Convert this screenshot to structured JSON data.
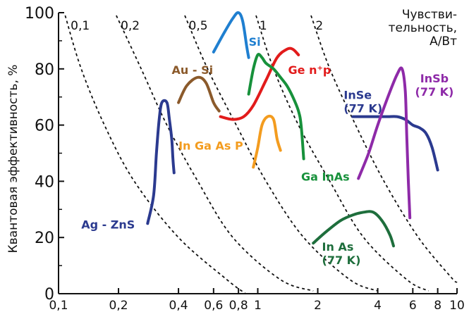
{
  "chart_data": {
    "type": "line",
    "xlabel": "",
    "ylabel": "Квантовая эффективность, %",
    "xscale": "log",
    "xlim": [
      0.1,
      10
    ],
    "ylim": [
      0,
      100
    ],
    "xticks": [
      {
        "v": 0.1,
        "label": "0,1"
      },
      {
        "v": 0.2,
        "label": "0,2"
      },
      {
        "v": 0.4,
        "label": "0,4"
      },
      {
        "v": 0.6,
        "label": "0,6"
      },
      {
        "v": 0.8,
        "label": "0,8"
      },
      {
        "v": 1,
        "label": "1"
      },
      {
        "v": 2,
        "label": "2"
      },
      {
        "v": 4,
        "label": "4"
      },
      {
        "v": 6,
        "label": "6"
      },
      {
        "v": 8,
        "label": "8"
      },
      {
        "v": 10,
        "label": "10"
      }
    ],
    "yticks": [
      {
        "v": 0,
        "label": "0"
      },
      {
        "v": 20,
        "label": "20"
      },
      {
        "v": 40,
        "label": "40"
      },
      {
        "v": 60,
        "label": "60"
      },
      {
        "v": 80,
        "label": "80"
      },
      {
        "v": 100,
        "label": "100"
      }
    ],
    "responsivity_title": [
      "Чувстви-",
      "тельность,",
      "А/Вт"
    ],
    "responsivity_lines": [
      {
        "label": "0,1",
        "points": [
          [
            0.108,
            99
          ],
          [
            0.13,
            80
          ],
          [
            0.17,
            60
          ],
          [
            0.24,
            40
          ],
          [
            0.4,
            20
          ],
          [
            0.7,
            5
          ],
          [
            0.87,
            0
          ]
        ],
        "label_at": [
          0.115,
          96
        ]
      },
      {
        "label": "0,2",
        "points": [
          [
            0.195,
            99
          ],
          [
            0.26,
            80
          ],
          [
            0.35,
            60
          ],
          [
            0.5,
            40
          ],
          [
            0.75,
            20
          ],
          [
            1.3,
            5
          ],
          [
            1.9,
            1
          ]
        ],
        "label_at": [
          0.205,
          96
        ]
      },
      {
        "label": "0,5",
        "points": [
          [
            0.43,
            99
          ],
          [
            0.56,
            80
          ],
          [
            0.78,
            60
          ],
          [
            1.1,
            40
          ],
          [
            1.7,
            20
          ],
          [
            2.9,
            5
          ],
          [
            4.0,
            1
          ]
        ],
        "label_at": [
          0.45,
          96
        ]
      },
      {
        "label": "1",
        "points": [
          [
            0.98,
            99
          ],
          [
            1.2,
            80
          ],
          [
            1.6,
            60
          ],
          [
            2.3,
            40
          ],
          [
            3.4,
            20
          ],
          [
            5.6,
            5
          ],
          [
            7.2,
            1
          ]
        ],
        "label_at": [
          1.02,
          96
        ]
      },
      {
        "label": "2",
        "points": [
          [
            1.85,
            99
          ],
          [
            2.3,
            80
          ],
          [
            3.1,
            60
          ],
          [
            4.3,
            40
          ],
          [
            6.4,
            20
          ],
          [
            9.3,
            6
          ],
          [
            10,
            4
          ]
        ],
        "label_at": [
          1.95,
          96
        ]
      }
    ],
    "series": [
      {
        "name": "Ag - ZnS",
        "color": "#2b3a8f",
        "label_at": [
          0.13,
          25
        ],
        "label_anchor": "start",
        "points": [
          [
            0.28,
            25
          ],
          [
            0.3,
            35
          ],
          [
            0.31,
            50
          ],
          [
            0.32,
            62
          ],
          [
            0.33,
            68
          ],
          [
            0.35,
            68
          ],
          [
            0.36,
            62
          ],
          [
            0.37,
            55
          ],
          [
            0.375,
            48
          ],
          [
            0.38,
            43
          ]
        ]
      },
      {
        "name": "Au - Si",
        "color": "#8b5a2b",
        "label_at": [
          0.37,
          80
        ],
        "label_anchor": "start",
        "points": [
          [
            0.4,
            68
          ],
          [
            0.44,
            74
          ],
          [
            0.5,
            77
          ],
          [
            0.55,
            75
          ],
          [
            0.6,
            68
          ],
          [
            0.64,
            65
          ]
        ]
      },
      {
        "name": "Si",
        "color": "#1f7fd0",
        "label_at": [
          0.9,
          90
        ],
        "label_anchor": "start",
        "points": [
          [
            0.6,
            86
          ],
          [
            0.68,
            93
          ],
          [
            0.75,
            98
          ],
          [
            0.8,
            100
          ],
          [
            0.84,
            97
          ],
          [
            0.88,
            88
          ],
          [
            0.9,
            84
          ]
        ]
      },
      {
        "name": "Ge n⁺p",
        "color": "#e21b1b",
        "label_at": [
          1.42,
          80
        ],
        "label_anchor": "start",
        "points": [
          [
            0.65,
            63
          ],
          [
            0.75,
            62
          ],
          [
            0.85,
            63
          ],
          [
            0.95,
            67
          ],
          [
            1.1,
            76
          ],
          [
            1.25,
            84
          ],
          [
            1.4,
            87
          ],
          [
            1.5,
            87
          ],
          [
            1.6,
            85
          ]
        ]
      },
      {
        "name": "In Ga As P",
        "color": "#f39c1f",
        "label_at": [
          0.4,
          53
        ],
        "label_anchor": "start",
        "points": [
          [
            0.95,
            45
          ],
          [
            1.0,
            52
          ],
          [
            1.05,
            60
          ],
          [
            1.12,
            63
          ],
          [
            1.2,
            62
          ],
          [
            1.25,
            55
          ],
          [
            1.3,
            51
          ]
        ]
      },
      {
        "name": "Ga InAs",
        "color": "#17913b",
        "label_at": [
          1.65,
          42
        ],
        "label_anchor": "start",
        "points": [
          [
            0.9,
            71
          ],
          [
            0.95,
            80
          ],
          [
            1.0,
            85
          ],
          [
            1.05,
            84
          ],
          [
            1.1,
            82
          ],
          [
            1.2,
            80
          ],
          [
            1.3,
            77
          ],
          [
            1.4,
            74
          ],
          [
            1.5,
            70
          ],
          [
            1.6,
            65
          ],
          [
            1.65,
            60
          ],
          [
            1.7,
            48
          ]
        ]
      },
      {
        "name": "InSe (77 K)",
        "label_lines": [
          "InSe",
          "(77 K)"
        ],
        "color": "#2b3a8f",
        "label_at": [
          2.7,
          71
        ],
        "label_anchor": "start",
        "points": [
          [
            3.0,
            63
          ],
          [
            3.5,
            63
          ],
          [
            4.0,
            63
          ],
          [
            4.5,
            63
          ],
          [
            5.0,
            63
          ],
          [
            5.5,
            62
          ],
          [
            6.0,
            60
          ],
          [
            6.5,
            59
          ],
          [
            7.0,
            57
          ],
          [
            7.5,
            52
          ],
          [
            8.0,
            44
          ]
        ]
      },
      {
        "name": "InSb (77 K)",
        "label_lines": [
          "InSb",
          "(77 K)"
        ],
        "color": "#8e2aa8",
        "label_at": [
          7.7,
          77
        ],
        "label_anchor": "middle",
        "points": [
          [
            3.2,
            41
          ],
          [
            3.6,
            50
          ],
          [
            4.0,
            60
          ],
          [
            4.5,
            70
          ],
          [
            5.0,
            78
          ],
          [
            5.3,
            80
          ],
          [
            5.5,
            72
          ],
          [
            5.6,
            55
          ],
          [
            5.7,
            40
          ],
          [
            5.8,
            27
          ]
        ]
      },
      {
        "name": "In As (77 K)",
        "label_lines": [
          "In As",
          "(77 K)"
        ],
        "color": "#1e6e3c",
        "label_at": [
          2.1,
          17
        ],
        "label_anchor": "start",
        "points": [
          [
            1.9,
            18
          ],
          [
            2.2,
            22
          ],
          [
            2.6,
            26
          ],
          [
            3.0,
            28
          ],
          [
            3.4,
            29
          ],
          [
            3.8,
            29
          ],
          [
            4.2,
            26
          ],
          [
            4.6,
            21
          ],
          [
            4.8,
            17
          ]
        ]
      }
    ]
  }
}
